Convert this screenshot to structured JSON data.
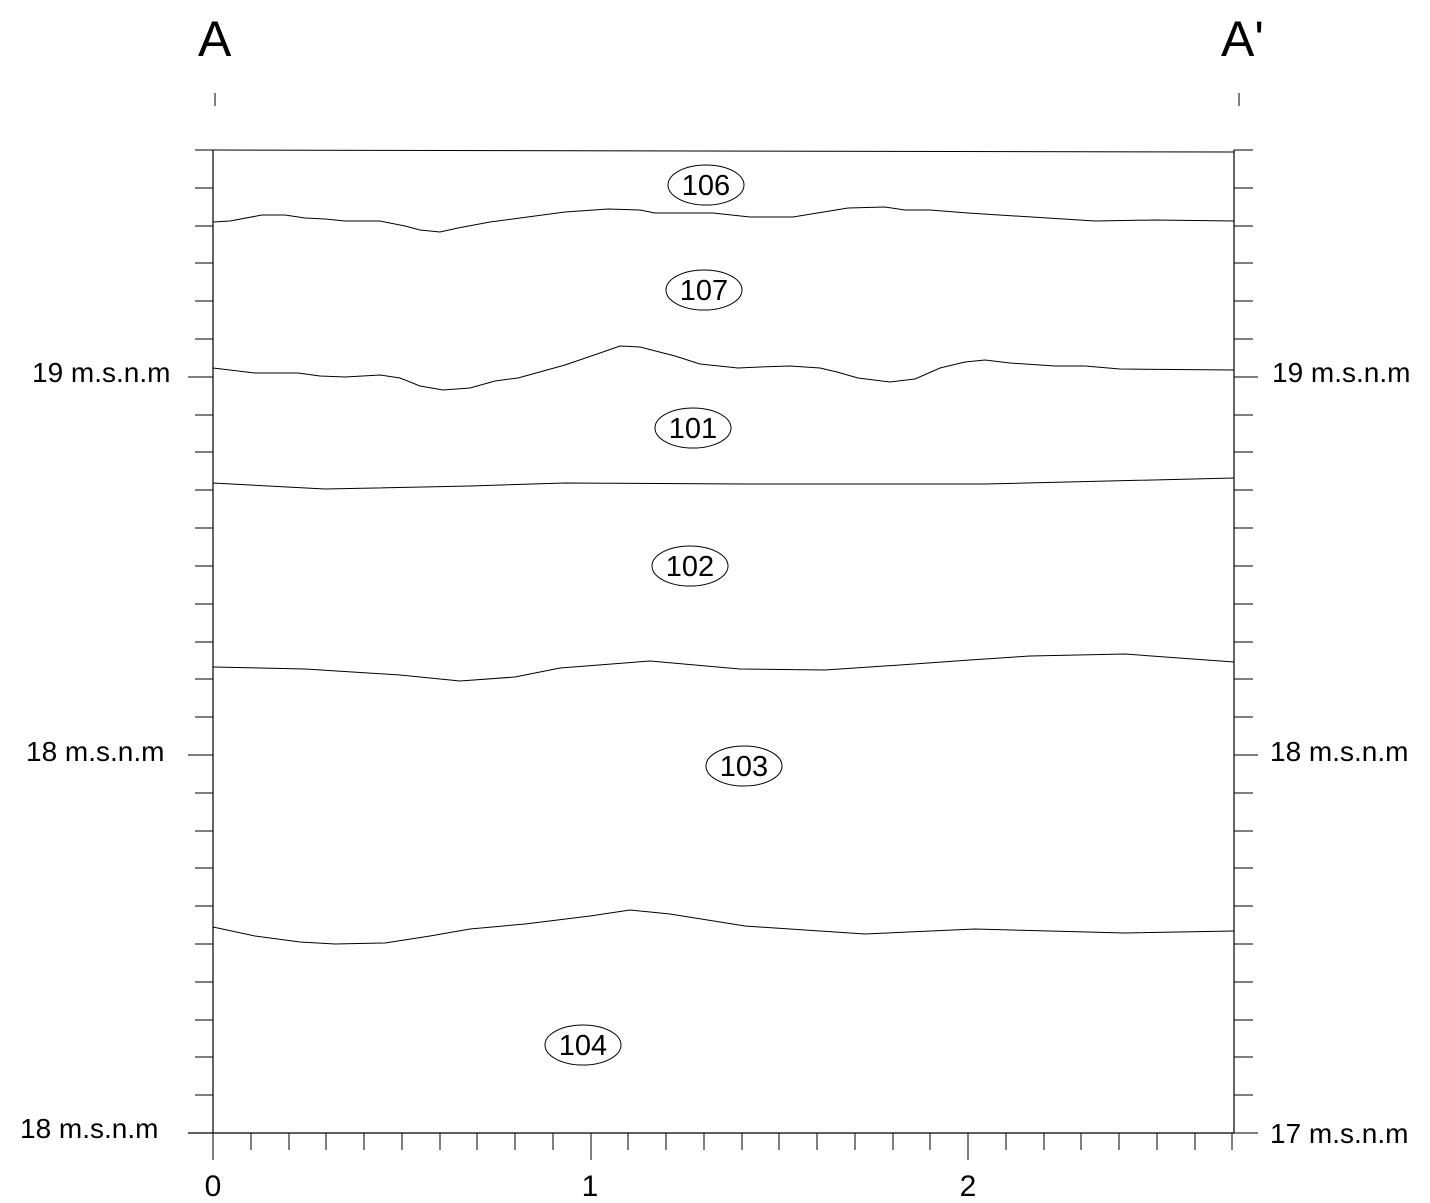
{
  "section": {
    "start_label": "A",
    "end_label": "A'"
  },
  "left_axis": {
    "labels": [
      "19 m.s.n.m",
      "18 m.s.n.m",
      "18 m.s.n.m"
    ]
  },
  "right_axis": {
    "labels": [
      "19 m.s.n.m",
      "18 m.s.n.m",
      "17 m.s.n.m"
    ]
  },
  "x_axis": {
    "labels": [
      "0",
      "1",
      "2"
    ]
  },
  "units": [
    "106",
    "107",
    "101",
    "102",
    "103",
    "104"
  ]
}
